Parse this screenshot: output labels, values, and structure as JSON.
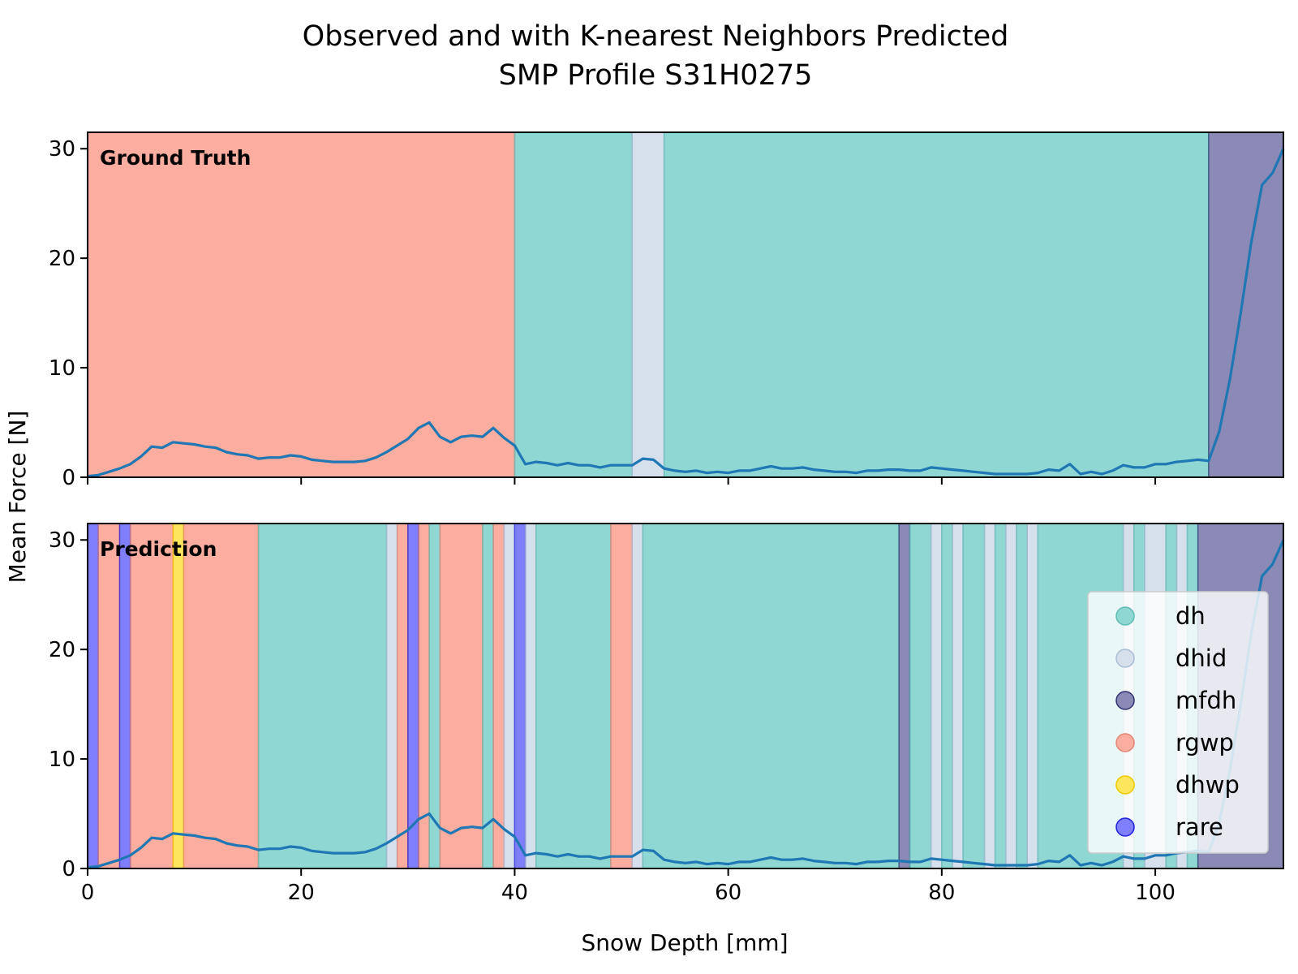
{
  "chart_data": {
    "type": "line",
    "title": "Observed and with K-nearest Neighbors Predicted",
    "subtitle": "SMP Profile S31H0275",
    "xlabel": "Snow Depth [mm]",
    "ylabel": "Mean Force [N]",
    "xlim": [
      0,
      112
    ],
    "ylim": [
      0,
      31.5
    ],
    "x_ticks": [
      0,
      20,
      40,
      60,
      80,
      100
    ],
    "y_ticks": [
      0,
      10,
      20,
      30
    ],
    "grid": false,
    "legend_placement": "lower-right",
    "class_colors": {
      "dh": "#8fd7d2",
      "dhid": "#d6e0ec",
      "mfdh": "#8b8ab6",
      "rgwp": "#fbad9f",
      "dhwp": "#fde65c",
      "rare": "#7f7ffb"
    },
    "class_edge_colors": {
      "dh": "#5ebcb5",
      "dhid": "#a9bcd6",
      "mfdh": "#303070",
      "rgwp": "#e48676",
      "dhwp": "#f0c800",
      "rare": "#2020e0"
    },
    "legend": [
      "dh",
      "dhid",
      "mfdh",
      "rgwp",
      "dhwp",
      "rare"
    ],
    "series": [
      {
        "x": [
          0,
          1,
          2,
          3,
          4,
          5,
          6,
          7,
          8,
          9,
          10,
          11,
          12,
          13,
          14,
          15,
          16,
          17,
          18,
          19,
          20,
          21,
          22,
          23,
          24,
          25,
          26,
          27,
          28,
          29,
          30,
          31,
          32,
          33,
          34,
          35,
          36,
          37,
          38,
          39,
          40,
          41,
          42,
          43,
          44,
          45,
          46,
          47,
          48,
          49,
          50,
          51,
          52,
          53,
          54,
          55,
          56,
          57,
          58,
          59,
          60,
          61,
          62,
          63,
          64,
          65,
          66,
          67,
          68,
          69,
          70,
          71,
          72,
          73,
          74,
          75,
          76,
          77,
          78,
          79,
          80,
          81,
          82,
          83,
          84,
          85,
          86,
          87,
          88,
          89,
          90,
          91,
          92,
          93,
          94,
          95,
          96,
          97,
          98,
          99,
          100,
          101,
          102,
          103,
          104,
          105,
          106,
          107,
          108,
          109,
          110,
          111,
          112
        ],
        "y": [
          0.1,
          0.2,
          0.5,
          0.8,
          1.2,
          1.9,
          2.8,
          2.7,
          3.2,
          3.1,
          3.0,
          2.8,
          2.7,
          2.3,
          2.1,
          2.0,
          1.7,
          1.8,
          1.8,
          2.0,
          1.9,
          1.6,
          1.5,
          1.4,
          1.4,
          1.4,
          1.5,
          1.8,
          2.3,
          2.9,
          3.5,
          4.5,
          5.0,
          3.7,
          3.2,
          3.7,
          3.8,
          3.7,
          4.5,
          3.6,
          2.9,
          1.2,
          1.4,
          1.3,
          1.1,
          1.3,
          1.1,
          1.1,
          0.9,
          1.1,
          1.1,
          1.1,
          1.7,
          1.6,
          0.8,
          0.6,
          0.5,
          0.6,
          0.4,
          0.5,
          0.4,
          0.6,
          0.6,
          0.8,
          1.0,
          0.8,
          0.8,
          0.9,
          0.7,
          0.6,
          0.5,
          0.5,
          0.4,
          0.6,
          0.6,
          0.7,
          0.7,
          0.6,
          0.6,
          0.9,
          0.8,
          0.7,
          0.6,
          0.5,
          0.4,
          0.3,
          0.3,
          0.3,
          0.3,
          0.4,
          0.7,
          0.6,
          1.2,
          0.3,
          0.5,
          0.3,
          0.6,
          1.1,
          0.9,
          0.9,
          1.2,
          1.2,
          1.4,
          1.5,
          1.6,
          1.5,
          4.2,
          9.0,
          15.0,
          21.5,
          26.7,
          27.8,
          30.0
        ]
      }
    ],
    "panels": [
      {
        "label": "Ground Truth",
        "segments": [
          {
            "start": 0,
            "end": 40,
            "class": "rgwp"
          },
          {
            "start": 40,
            "end": 51,
            "class": "dh"
          },
          {
            "start": 51,
            "end": 54,
            "class": "dhid"
          },
          {
            "start": 54,
            "end": 105,
            "class": "dh"
          },
          {
            "start": 105,
            "end": 112,
            "class": "mfdh"
          }
        ]
      },
      {
        "label": "Prediction",
        "segments": [
          {
            "start": 0,
            "end": 1,
            "class": "rare"
          },
          {
            "start": 1,
            "end": 3,
            "class": "rgwp"
          },
          {
            "start": 3,
            "end": 4,
            "class": "rare"
          },
          {
            "start": 4,
            "end": 8,
            "class": "rgwp"
          },
          {
            "start": 8,
            "end": 9,
            "class": "dhwp"
          },
          {
            "start": 9,
            "end": 16,
            "class": "rgwp"
          },
          {
            "start": 16,
            "end": 28,
            "class": "dh"
          },
          {
            "start": 28,
            "end": 29,
            "class": "dhid"
          },
          {
            "start": 29,
            "end": 30,
            "class": "rgwp"
          },
          {
            "start": 30,
            "end": 31,
            "class": "rare"
          },
          {
            "start": 31,
            "end": 32,
            "class": "rgwp"
          },
          {
            "start": 32,
            "end": 33,
            "class": "dh"
          },
          {
            "start": 33,
            "end": 37,
            "class": "rgwp"
          },
          {
            "start": 37,
            "end": 38,
            "class": "dh"
          },
          {
            "start": 38,
            "end": 39,
            "class": "rgwp"
          },
          {
            "start": 39,
            "end": 40,
            "class": "dhid"
          },
          {
            "start": 40,
            "end": 41,
            "class": "rare"
          },
          {
            "start": 41,
            "end": 42,
            "class": "dhid"
          },
          {
            "start": 42,
            "end": 49,
            "class": "dh"
          },
          {
            "start": 49,
            "end": 51,
            "class": "rgwp"
          },
          {
            "start": 51,
            "end": 52,
            "class": "dhid"
          },
          {
            "start": 52,
            "end": 76,
            "class": "dh"
          },
          {
            "start": 76,
            "end": 77,
            "class": "mfdh"
          },
          {
            "start": 77,
            "end": 79,
            "class": "dh"
          },
          {
            "start": 79,
            "end": 80,
            "class": "dhid"
          },
          {
            "start": 80,
            "end": 81,
            "class": "dh"
          },
          {
            "start": 81,
            "end": 82,
            "class": "dhid"
          },
          {
            "start": 82,
            "end": 84,
            "class": "dh"
          },
          {
            "start": 84,
            "end": 85,
            "class": "dhid"
          },
          {
            "start": 85,
            "end": 86,
            "class": "dh"
          },
          {
            "start": 86,
            "end": 87,
            "class": "dhid"
          },
          {
            "start": 87,
            "end": 88,
            "class": "dh"
          },
          {
            "start": 88,
            "end": 89,
            "class": "dhid"
          },
          {
            "start": 89,
            "end": 97,
            "class": "dh"
          },
          {
            "start": 97,
            "end": 98,
            "class": "dhid"
          },
          {
            "start": 98,
            "end": 99,
            "class": "dh"
          },
          {
            "start": 99,
            "end": 101,
            "class": "dhid"
          },
          {
            "start": 101,
            "end": 102,
            "class": "dh"
          },
          {
            "start": 102,
            "end": 103,
            "class": "dhid"
          },
          {
            "start": 103,
            "end": 104,
            "class": "dh"
          },
          {
            "start": 104,
            "end": 112,
            "class": "mfdh"
          }
        ]
      }
    ]
  }
}
